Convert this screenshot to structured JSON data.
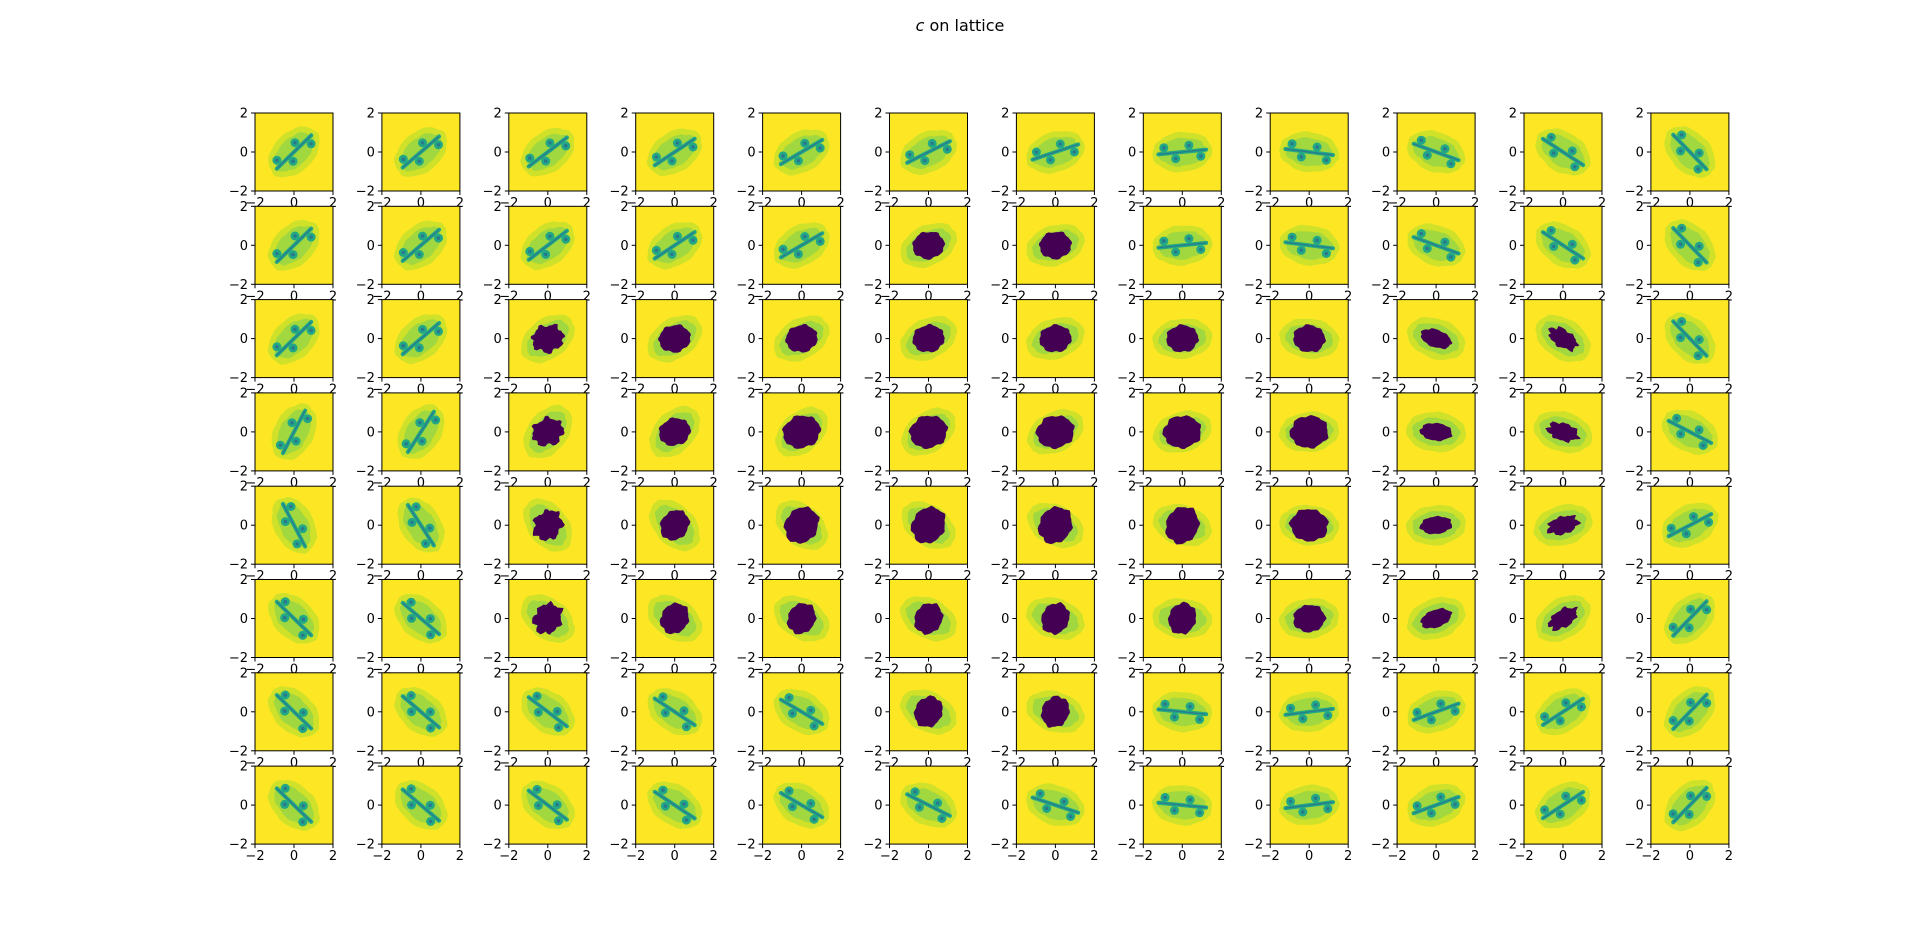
{
  "figure": {
    "title_symbol": "c",
    "title_rest": " on lattice",
    "rows": 8,
    "cols": 12,
    "colormap": "viridis",
    "colors": {
      "background": "#fde725",
      "outer_halo": "#c8df2c",
      "mid_halo": "#7ad151",
      "inner_halo": "#22a884",
      "filament": "#2a788e",
      "interior": "#440154",
      "frame": "#000000"
    }
  },
  "chart_data": {
    "type": "heatmap",
    "title": "c on lattice",
    "description_of_panels": "12 x 8 grid of Julia set escape-time images",
    "xlim": [
      -2,
      2
    ],
    "ylim": [
      -2,
      2
    ],
    "x_ticks": [
      -2,
      0,
      2
    ],
    "y_ticks": [
      -2,
      0,
      2
    ],
    "x_tick_labels": [
      "−2",
      "0",
      "2"
    ],
    "y_tick_labels": [
      "−2",
      "0",
      "2"
    ],
    "grid": false
  }
}
